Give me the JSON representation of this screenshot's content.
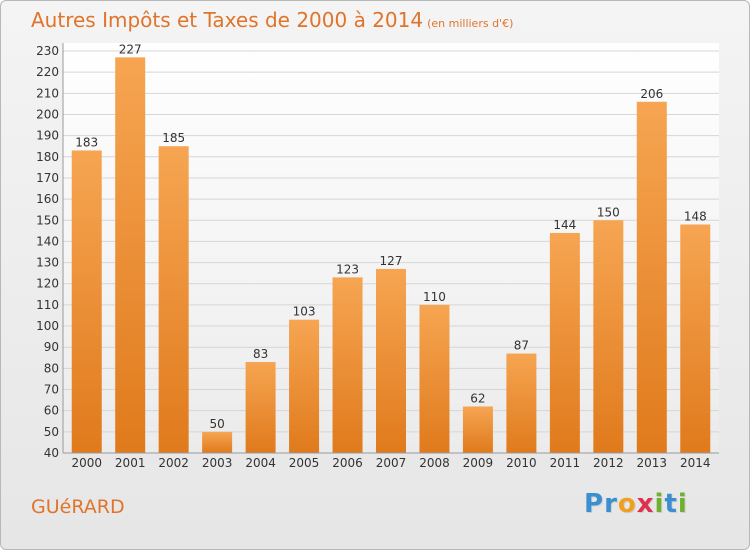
{
  "title": "Autres Impôts et Taxes de 2000 à 2014",
  "unit": "(en milliers d'€)",
  "commune": "GUéRARD",
  "logo": {
    "letters": [
      "P",
      "r",
      "o",
      "x",
      "i",
      "t",
      "i"
    ],
    "colors": [
      "#3a8fd0",
      "#3a8fd0",
      "#f0a020",
      "#e03050",
      "#70b030",
      "#3a8fd0",
      "#70b030"
    ]
  },
  "chart_data": {
    "type": "bar",
    "categories": [
      "2000",
      "2001",
      "2002",
      "2003",
      "2004",
      "2005",
      "2006",
      "2007",
      "2008",
      "2009",
      "2010",
      "2011",
      "2012",
      "2013",
      "2014"
    ],
    "values": [
      183,
      227,
      185,
      50,
      83,
      103,
      123,
      127,
      110,
      62,
      87,
      144,
      150,
      206,
      148
    ],
    "title": "Autres Impôts et Taxes de 2000 à 2014",
    "ylim": [
      40,
      230
    ],
    "yticks": [
      40,
      50,
      60,
      70,
      80,
      90,
      100,
      110,
      120,
      130,
      140,
      150,
      160,
      170,
      180,
      190,
      200,
      210,
      220,
      230
    ],
    "grid": true,
    "bar_color": "#f0902e"
  }
}
